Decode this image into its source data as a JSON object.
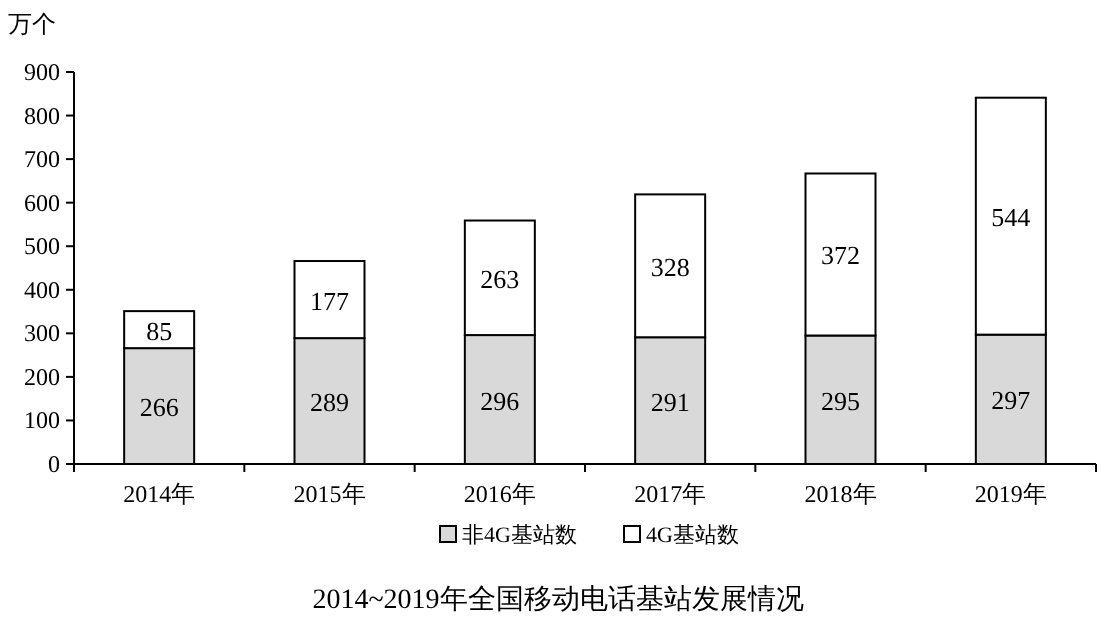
{
  "chart_data": {
    "type": "bar",
    "stacked": true,
    "title": "2014~2019年全国移动电话基站发展情况",
    "ylabel": "万个",
    "categories": [
      "2014年",
      "2015年",
      "2016年",
      "2017年",
      "2018年",
      "2019年"
    ],
    "series": [
      {
        "name": "非4G基站数",
        "color": "#d9d9d9",
        "values": [
          266,
          289,
          296,
          291,
          295,
          297
        ]
      },
      {
        "name": "4G基站数",
        "color": "#ffffff",
        "values": [
          85,
          177,
          263,
          328,
          372,
          544
        ]
      }
    ],
    "ylim": [
      0,
      900
    ],
    "yticks": [
      0,
      100,
      200,
      300,
      400,
      500,
      600,
      700,
      800,
      900
    ],
    "data_labels": true,
    "grid": false,
    "legend": "bottom"
  }
}
